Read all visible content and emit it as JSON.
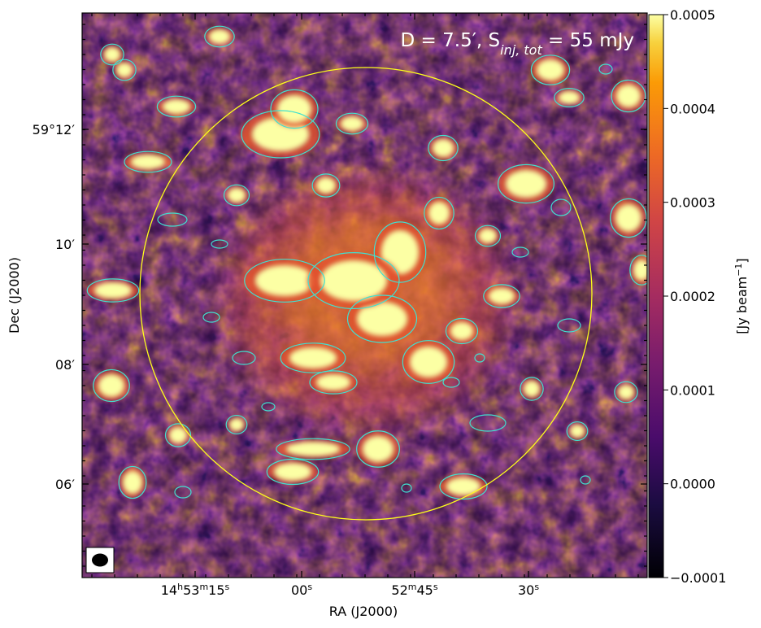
{
  "chart_data": {
    "type": "heatmap",
    "title": "D = 7.5′, S",
    "title_subscript": "inj, tot",
    "title_suffix": " = 55 mJy",
    "xlabel": "RA (J2000)",
    "ylabel": "Dec (J2000)",
    "colorbar_label": "[Jy beam",
    "colorbar_label_sup": "−1",
    "colorbar_label_end": "]",
    "colormap": "inferno",
    "colorbar_range": [
      -0.0001,
      0.0005
    ],
    "colorbar_ticks": [
      {
        "value": 0.0005,
        "label": "0.0005"
      },
      {
        "value": 0.0004,
        "label": "0.0004"
      },
      {
        "value": 0.0003,
        "label": "0.0003"
      },
      {
        "value": 0.0002,
        "label": "0.0002"
      },
      {
        "value": 0.0001,
        "label": "0.0001"
      },
      {
        "value": 0.0,
        "label": "0.0000"
      },
      {
        "value": -0.0001,
        "label": "−0.0001"
      }
    ],
    "x_ticks": [
      {
        "h": "14",
        "m": "53",
        "s": "15"
      },
      {
        "h": "",
        "m": "",
        "s": "00"
      },
      {
        "h": "",
        "m": "52",
        "s": "45"
      },
      {
        "h": "",
        "m": "",
        "s": "30"
      }
    ],
    "y_ticks": [
      {
        "label": "59°12′"
      },
      {
        "label": "10′"
      },
      {
        "label": "08′"
      },
      {
        "label": "06′"
      }
    ],
    "injection_circle_color": "#ffff1a",
    "contour_color": "#40e0d0",
    "beam_marker": true
  }
}
